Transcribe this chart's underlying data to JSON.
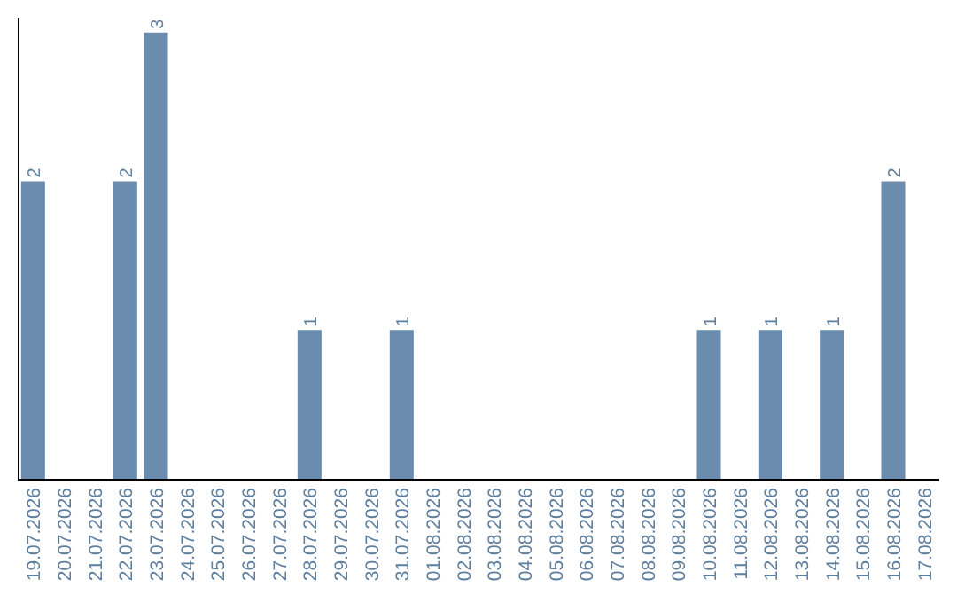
{
  "chart_data": {
    "type": "bar",
    "categories": [
      "19.07.2026",
      "20.07.2026",
      "21.07.2026",
      "22.07.2026",
      "23.07.2026",
      "24.07.2026",
      "25.07.2026",
      "26.07.2026",
      "27.07.2026",
      "28.07.2026",
      "29.07.2026",
      "30.07.2026",
      "31.07.2026",
      "01.08.2026",
      "02.08.2026",
      "03.08.2026",
      "04.08.2026",
      "05.08.2026",
      "06.08.2026",
      "07.08.2026",
      "08.08.2026",
      "09.08.2026",
      "10.08.2026",
      "11.08.2026",
      "12.08.2026",
      "13.08.2026",
      "14.08.2026",
      "15.08.2026",
      "16.08.2026",
      "17.08.2026"
    ],
    "values": [
      2,
      0,
      0,
      2,
      3,
      0,
      0,
      0,
      0,
      1,
      0,
      0,
      1,
      0,
      0,
      0,
      0,
      0,
      0,
      0,
      0,
      0,
      1,
      0,
      1,
      0,
      1,
      0,
      2,
      0
    ],
    "value_labels": [
      "2",
      null,
      null,
      "2",
      "3",
      null,
      null,
      null,
      null,
      "1",
      null,
      null,
      "1",
      null,
      null,
      null,
      null,
      null,
      null,
      null,
      null,
      null,
      "1",
      null,
      "1",
      null,
      "1",
      null,
      "2",
      null
    ],
    "color": "#6b8cae",
    "ylim": [
      0,
      3.1
    ]
  }
}
